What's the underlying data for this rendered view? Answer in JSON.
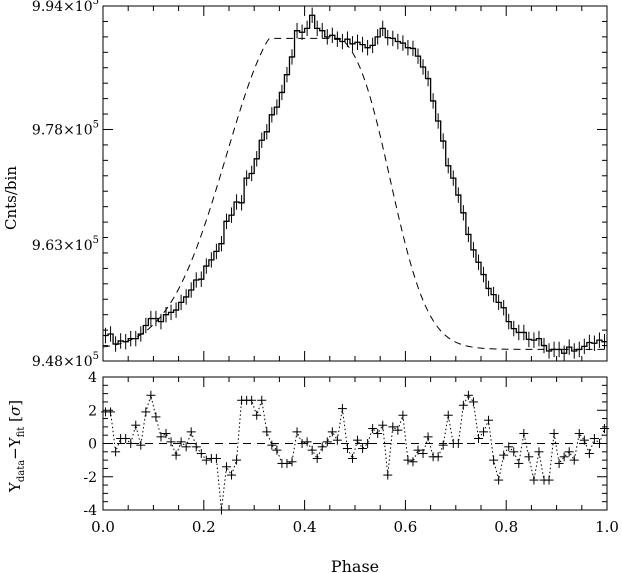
{
  "chart_data": [
    {
      "type": "line",
      "panel": "top",
      "ylabel": "Cnts/bin",
      "ylim": [
        948000.0,
        994000.0
      ],
      "xlim": [
        0.0,
        1.0
      ],
      "yticks": [
        {
          "value": 948000.0,
          "mant": "9.48",
          "exp": "5"
        },
        {
          "value": 963000.0,
          "mant": "9.63",
          "exp": "5"
        },
        {
          "value": 978000.0,
          "mant": "9.78",
          "exp": "5"
        },
        {
          "value": 994000.0,
          "mant": "9.94",
          "exp": "5"
        }
      ],
      "series": [
        {
          "style": "data histogram with error bars",
          "x": [
            0.005,
            0.015,
            0.025,
            0.035,
            0.045,
            0.055,
            0.065,
            0.075,
            0.085,
            0.095,
            0.105,
            0.115,
            0.125,
            0.135,
            0.145,
            0.155,
            0.165,
            0.175,
            0.185,
            0.195,
            0.205,
            0.215,
            0.225,
            0.235,
            0.245,
            0.255,
            0.265,
            0.275,
            0.285,
            0.295,
            0.305,
            0.315,
            0.325,
            0.335,
            0.345,
            0.355,
            0.365,
            0.375,
            0.385,
            0.395,
            0.405,
            0.415,
            0.425,
            0.435,
            0.445,
            0.455,
            0.465,
            0.475,
            0.485,
            0.495,
            0.505,
            0.515,
            0.525,
            0.535,
            0.545,
            0.555,
            0.565,
            0.575,
            0.585,
            0.595,
            0.605,
            0.615,
            0.625,
            0.635,
            0.645,
            0.655,
            0.665,
            0.675,
            0.685,
            0.695,
            0.705,
            0.715,
            0.725,
            0.735,
            0.745,
            0.755,
            0.765,
            0.775,
            0.785,
            0.795,
            0.805,
            0.815,
            0.825,
            0.835,
            0.845,
            0.855,
            0.865,
            0.875,
            0.885,
            0.895,
            0.905,
            0.915,
            0.925,
            0.935,
            0.945,
            0.955,
            0.965,
            0.975,
            0.985,
            0.995
          ],
          "y": [
            951.3,
            951.5,
            950.2,
            950.6,
            950.5,
            950.9,
            950.9,
            951.5,
            952.6,
            953.5,
            953.5,
            953.1,
            954.0,
            954.3,
            954.6,
            955.6,
            956.3,
            957.2,
            958.5,
            958.6,
            960.3,
            961.1,
            962.2,
            963.2,
            966.1,
            966.9,
            968.6,
            968.5,
            971.7,
            972.3,
            974.2,
            976.6,
            977.7,
            979.9,
            980.9,
            982.8,
            985.1,
            987.4,
            990.8,
            990.6,
            991.1,
            992.8,
            991.1,
            990.8,
            990.0,
            990.2,
            989.7,
            989.4,
            989.7,
            989.1,
            989.3,
            989.0,
            988.6,
            988.9,
            990.0,
            991.1,
            989.9,
            989.8,
            989.4,
            989.2,
            988.6,
            988.5,
            987.5,
            986.1,
            984.6,
            981.7,
            979.1,
            976.5,
            973.3,
            971.7,
            969.5,
            967.2,
            964.4,
            962.4,
            960.8,
            959.2,
            957.4,
            956.6,
            955.6,
            954.9,
            953.1,
            952.2,
            951.7,
            951.7,
            950.8,
            950.7,
            950.9,
            950.0,
            949.3,
            949.5,
            949.5,
            949.0,
            949.8,
            949.3,
            949.5,
            949.9,
            950.4,
            950.3,
            950.7,
            950.5
          ],
          "y_units": "x1000 cnts/bin"
        },
        {
          "style": "dashed model fit",
          "shape": "smooth single-peaked profile"
        }
      ]
    },
    {
      "type": "scatter",
      "panel": "bottom",
      "xlabel": "Phase",
      "ylabel": "Y_data - Y_fit [σ]",
      "ylim": [
        -4,
        4
      ],
      "xlim": [
        0.0,
        1.0
      ],
      "yticks": [
        "-4",
        "-2",
        "0",
        "2",
        "4"
      ],
      "xticks": [
        "0.0",
        "0.2",
        "0.4",
        "0.6",
        "0.8",
        "1.0"
      ],
      "reference_line": 0,
      "x": [
        0.005,
        0.015,
        0.025,
        0.035,
        0.045,
        0.055,
        0.065,
        0.075,
        0.085,
        0.095,
        0.105,
        0.115,
        0.125,
        0.135,
        0.145,
        0.155,
        0.165,
        0.175,
        0.185,
        0.195,
        0.205,
        0.215,
        0.225,
        0.235,
        0.245,
        0.255,
        0.265,
        0.275,
        0.285,
        0.295,
        0.305,
        0.315,
        0.325,
        0.335,
        0.345,
        0.355,
        0.365,
        0.375,
        0.385,
        0.395,
        0.405,
        0.415,
        0.425,
        0.435,
        0.445,
        0.455,
        0.465,
        0.475,
        0.485,
        0.495,
        0.505,
        0.515,
        0.525,
        0.535,
        0.545,
        0.555,
        0.565,
        0.575,
        0.585,
        0.595,
        0.605,
        0.615,
        0.625,
        0.635,
        0.645,
        0.655,
        0.665,
        0.675,
        0.685,
        0.695,
        0.705,
        0.715,
        0.725,
        0.735,
        0.745,
        0.755,
        0.765,
        0.775,
        0.785,
        0.795,
        0.805,
        0.815,
        0.825,
        0.835,
        0.845,
        0.855,
        0.865,
        0.875,
        0.885,
        0.895,
        0.905,
        0.915,
        0.925,
        0.935,
        0.945,
        0.955,
        0.965,
        0.975,
        0.985,
        0.995
      ],
      "values": [
        1.9,
        1.9,
        -0.5,
        0.3,
        0.3,
        0.0,
        1.1,
        -0.1,
        1.9,
        2.9,
        1.6,
        0.4,
        0.6,
        0.1,
        -0.7,
        0.1,
        -0.2,
        0.7,
        -0.2,
        -0.6,
        -1.0,
        -0.9,
        -0.9,
        -4.0,
        -1.4,
        -1.9,
        -1.0,
        2.6,
        2.6,
        2.6,
        1.7,
        2.6,
        0.7,
        -0.1,
        -0.4,
        -1.2,
        -1.2,
        -1.1,
        0.7,
        0.0,
        0.1,
        -0.4,
        -0.9,
        -0.2,
        0.1,
        0.7,
        0.2,
        2.1,
        -0.3,
        -0.9,
        0.2,
        -0.3,
        0.0,
        0.9,
        0.6,
        1.1,
        -1.9,
        1.0,
        0.8,
        1.7,
        -1.0,
        -1.1,
        -0.4,
        -0.6,
        0.4,
        -0.8,
        -0.8,
        -0.1,
        1.7,
        0.0,
        0.0,
        2.3,
        2.9,
        2.5,
        0.3,
        0.7,
        1.4,
        -1.0,
        -2.2,
        -0.7,
        -0.2,
        -0.5,
        -1.2,
        0.6,
        -0.8,
        -2.2,
        -0.5,
        -2.2,
        -2.2,
        0.6,
        -1.2,
        -0.8,
        -0.5,
        -1.0,
        0.6,
        0.2,
        -0.6,
        0.3,
        0.0,
        0.9
      ]
    }
  ]
}
